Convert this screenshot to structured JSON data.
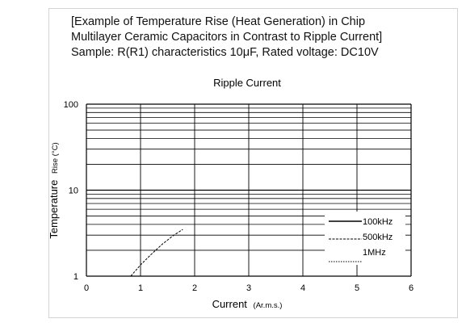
{
  "chart_data": {
    "type": "line",
    "title_lines": [
      "[Example of Temperature Rise (Heat Generation) in Chip",
      "Multilayer Ceramic Capacitors in Contrast to Ripple Current]",
      "Sample: R(R1) characteristics 10μF, Rated voltage: DC10V"
    ],
    "subtitle": "Ripple Current",
    "xlabel_main": "Current",
    "xlabel_unit": "(Ar.m.s.)",
    "ylabel_main": "Temperature",
    "ylabel_unit": "Rise (°C)",
    "x_ticks": [
      "0",
      "1",
      "2",
      "3",
      "4",
      "5",
      "6"
    ],
    "y_ticks": [
      "1",
      "10",
      "100"
    ],
    "xlim": [
      0,
      6
    ],
    "ylim": [
      1,
      100
    ],
    "y_scale": "log",
    "grid": true,
    "legend_position": "bottom-right",
    "series": [
      {
        "name": "100kHz",
        "style": "solid",
        "x": [],
        "y": []
      },
      {
        "name": "500kHz",
        "style": "dashed",
        "x": [
          0.82,
          1.0,
          1.2,
          1.4,
          1.6,
          1.78
        ],
        "y": [
          1.0,
          1.35,
          1.8,
          2.35,
          2.95,
          3.5
        ]
      },
      {
        "name": "1MHz",
        "style": "dotted",
        "x": [],
        "y": []
      }
    ]
  }
}
